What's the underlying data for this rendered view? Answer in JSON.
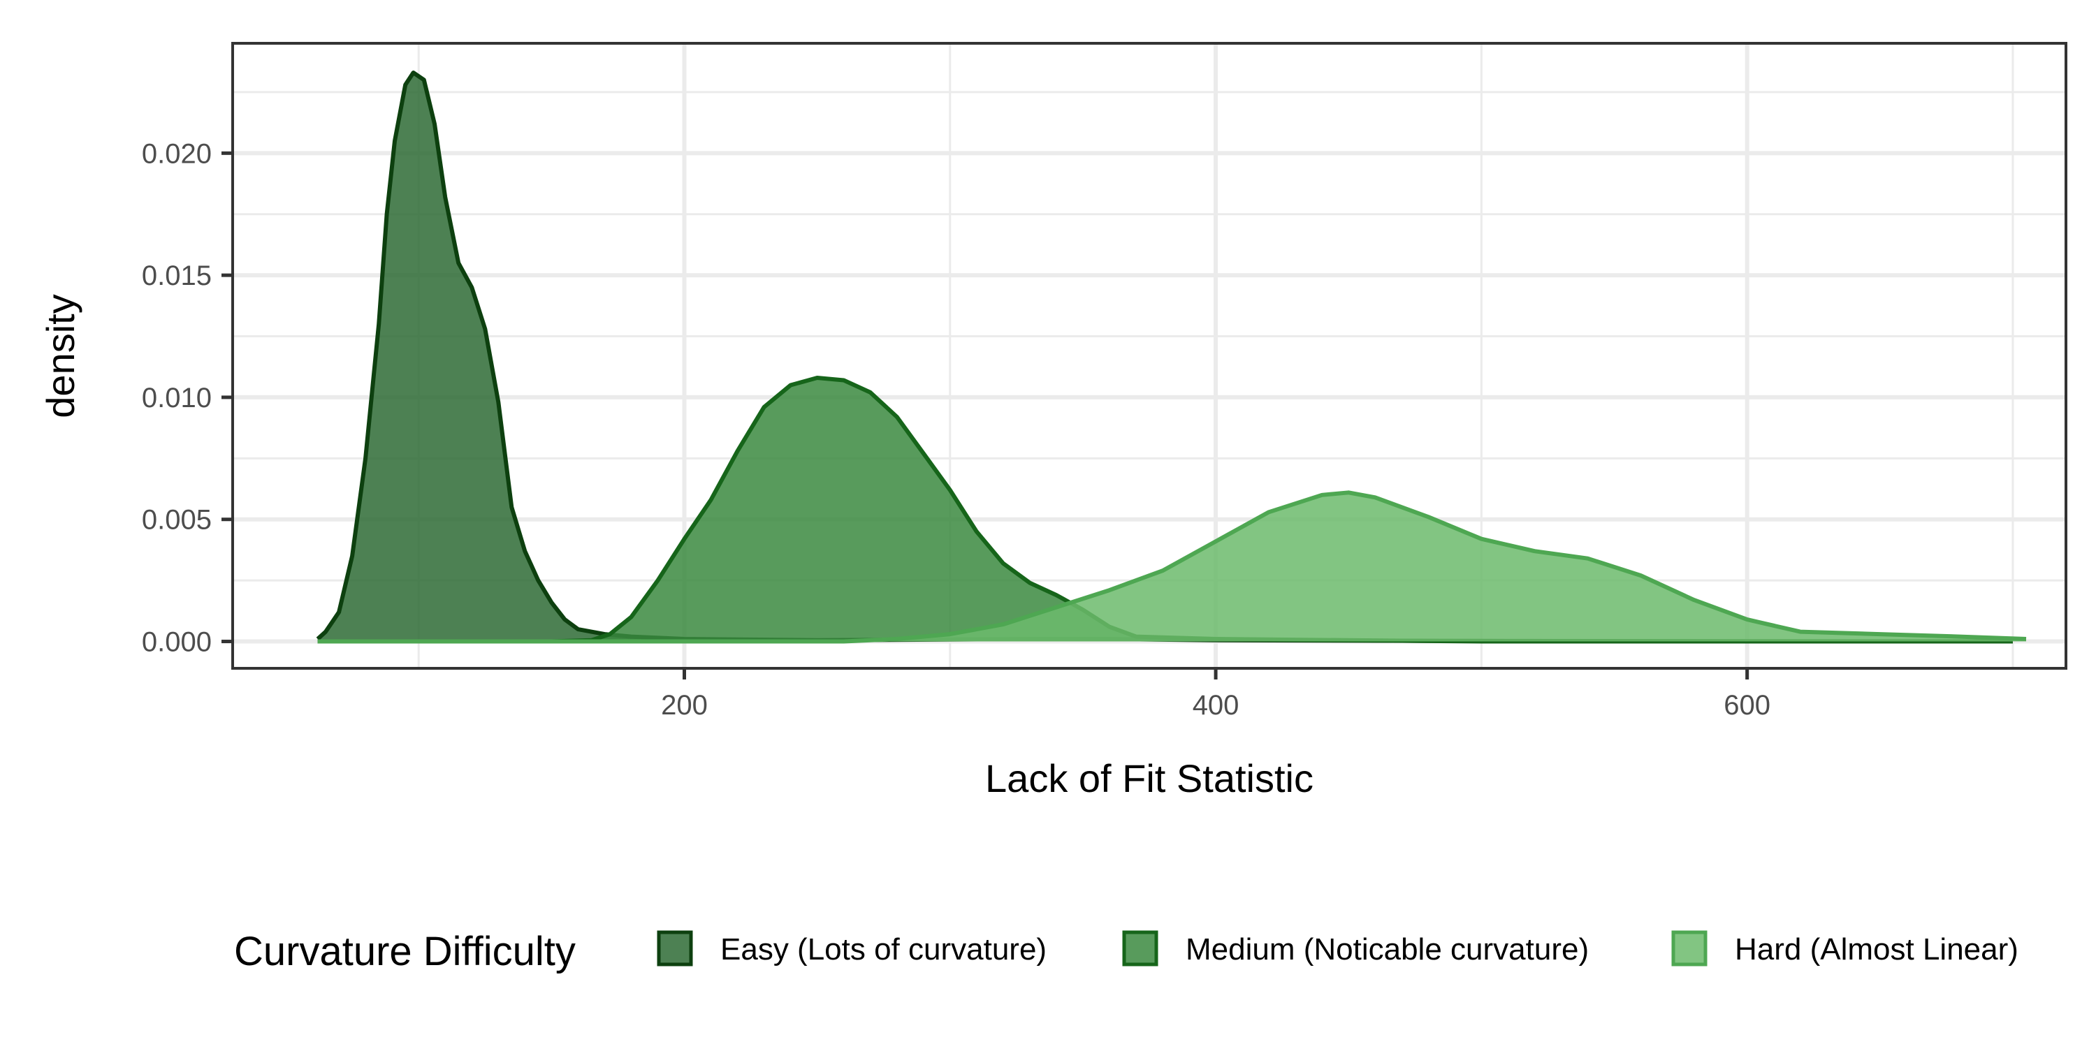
{
  "chart_data": {
    "type": "area",
    "subtype": "density",
    "xlabel": "Lack of Fit Statistic",
    "ylabel": "density",
    "xlim": [
      30,
      720
    ],
    "ylim": [
      -0.0011,
      0.0245
    ],
    "x_ticks": [
      200,
      400,
      600
    ],
    "x_tick_labels": [
      "200",
      "400",
      "600"
    ],
    "x_minor_ticks": [
      100,
      300,
      500,
      700
    ],
    "y_ticks": [
      0.0,
      0.005,
      0.01,
      0.015,
      0.02
    ],
    "y_tick_labels": [
      "0.000",
      "0.005",
      "0.010",
      "0.015",
      "0.020"
    ],
    "y_minor_ticks": [
      0.0025,
      0.0075,
      0.0125,
      0.0175,
      0.0225
    ],
    "grid": true,
    "legend": {
      "title": "Curvature Difficulty",
      "position": "bottom"
    },
    "series": [
      {
        "name": "Easy (Lots of curvature)",
        "fill": "#2e6b35",
        "stroke": "#0d400f",
        "points": [
          [
            62,
            0.0001
          ],
          [
            65,
            0.0004
          ],
          [
            70,
            0.0012
          ],
          [
            75,
            0.0035
          ],
          [
            80,
            0.0075
          ],
          [
            85,
            0.013
          ],
          [
            88,
            0.0175
          ],
          [
            91,
            0.0205
          ],
          [
            95,
            0.0228
          ],
          [
            98,
            0.0233
          ],
          [
            102,
            0.023
          ],
          [
            106,
            0.0212
          ],
          [
            110,
            0.0182
          ],
          [
            115,
            0.0155
          ],
          [
            120,
            0.0145
          ],
          [
            125,
            0.0128
          ],
          [
            130,
            0.0098
          ],
          [
            135,
            0.0055
          ],
          [
            140,
            0.0037
          ],
          [
            145,
            0.0025
          ],
          [
            150,
            0.0016
          ],
          [
            155,
            0.0009
          ],
          [
            160,
            0.0005
          ],
          [
            170,
            0.0003
          ],
          [
            180,
            0.0002
          ],
          [
            200,
            0.0001
          ],
          [
            250,
            5e-05
          ],
          [
            330,
            0.0001
          ],
          [
            360,
            0.0001
          ],
          [
            400,
            5e-05
          ],
          [
            500,
            2e-05
          ],
          [
            600,
            1e-05
          ],
          [
            700,
            0.0
          ]
        ]
      },
      {
        "name": "Medium (Noticable curvature)",
        "fill": "#3b8a3f",
        "stroke": "#16651a",
        "points": [
          [
            62,
            0.0
          ],
          [
            150,
            0.0
          ],
          [
            165,
            5e-05
          ],
          [
            172,
            0.0003
          ],
          [
            180,
            0.001
          ],
          [
            190,
            0.0025
          ],
          [
            200,
            0.0042
          ],
          [
            210,
            0.0058
          ],
          [
            220,
            0.0078
          ],
          [
            230,
            0.0096
          ],
          [
            240,
            0.0105
          ],
          [
            250,
            0.0108
          ],
          [
            260,
            0.0107
          ],
          [
            270,
            0.0102
          ],
          [
            280,
            0.0092
          ],
          [
            290,
            0.0077
          ],
          [
            300,
            0.0062
          ],
          [
            310,
            0.0045
          ],
          [
            320,
            0.0032
          ],
          [
            330,
            0.0024
          ],
          [
            340,
            0.0019
          ],
          [
            350,
            0.0013
          ],
          [
            360,
            0.0006
          ],
          [
            370,
            0.0002
          ],
          [
            400,
            0.0001
          ],
          [
            450,
            5e-05
          ],
          [
            500,
            0.0
          ],
          [
            700,
            0.0
          ]
        ]
      },
      {
        "name": "Hard (Almost Linear)",
        "fill": "#6cbb6c",
        "stroke": "#4ea752",
        "points": [
          [
            62,
            0.0
          ],
          [
            200,
            0.0
          ],
          [
            260,
            0.0
          ],
          [
            280,
            0.0001
          ],
          [
            300,
            0.0003
          ],
          [
            320,
            0.0007
          ],
          [
            340,
            0.0014
          ],
          [
            360,
            0.0021
          ],
          [
            380,
            0.0029
          ],
          [
            400,
            0.0041
          ],
          [
            420,
            0.0053
          ],
          [
            440,
            0.006
          ],
          [
            450,
            0.0061
          ],
          [
            460,
            0.0059
          ],
          [
            480,
            0.0051
          ],
          [
            500,
            0.0042
          ],
          [
            520,
            0.0037
          ],
          [
            540,
            0.0034
          ],
          [
            560,
            0.0027
          ],
          [
            580,
            0.0017
          ],
          [
            600,
            0.0009
          ],
          [
            620,
            0.0004
          ],
          [
            650,
            0.0003
          ],
          [
            680,
            0.0002
          ],
          [
            705,
            0.0001
          ]
        ]
      }
    ]
  }
}
